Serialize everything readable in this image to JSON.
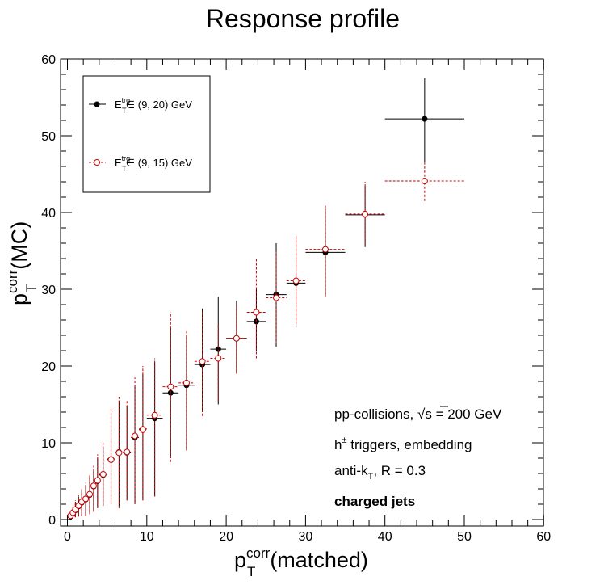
{
  "chart_data": {
    "type": "scatter",
    "title": "Response profile",
    "xlabel": {
      "main": "p",
      "sup": "corr",
      "sub": "T",
      "suffix": "(matched)"
    },
    "ylabel": {
      "main": "p",
      "sup": "corr",
      "sub": "T",
      "suffix": "(MC)"
    },
    "xlim": [
      0,
      60
    ],
    "ylim": [
      0,
      60
    ],
    "xticks": [
      "0",
      "10",
      "20",
      "30",
      "40",
      "50",
      "60"
    ],
    "yticks": [
      "0",
      "10",
      "20",
      "30",
      "40",
      "50",
      "60"
    ],
    "grid": false,
    "legend_position": "top-left",
    "series": [
      {
        "name": {
          "main": "E",
          "sup": "trg",
          "sub": "T",
          "suffix": " ∈ (9, 20) GeV"
        },
        "color": "#000000",
        "marker": "filled-circle",
        "line": "solid",
        "points": [
          {
            "x": 0.4,
            "y": 0.4,
            "xerr": 0.1,
            "ylo": 0.1,
            "yhi": 0.9
          },
          {
            "x": 0.7,
            "y": 0.8,
            "xerr": 0.15,
            "ylo": 0.2,
            "yhi": 1.6
          },
          {
            "x": 1.0,
            "y": 1.2,
            "xerr": 0.15,
            "ylo": 0.3,
            "yhi": 2.3
          },
          {
            "x": 1.4,
            "y": 1.7,
            "xerr": 0.2,
            "ylo": 0.4,
            "yhi": 3.0
          },
          {
            "x": 1.8,
            "y": 2.2,
            "xerr": 0.2,
            "ylo": 0.5,
            "yhi": 3.8
          },
          {
            "x": 2.3,
            "y": 2.6,
            "xerr": 0.25,
            "ylo": 0.5,
            "yhi": 4.5
          },
          {
            "x": 2.8,
            "y": 3.2,
            "xerr": 0.25,
            "ylo": 0.7,
            "yhi": 5.5
          },
          {
            "x": 3.3,
            "y": 4.3,
            "xerr": 0.25,
            "ylo": 1.0,
            "yhi": 6.5
          },
          {
            "x": 3.8,
            "y": 5.0,
            "xerr": 0.25,
            "ylo": 1.5,
            "yhi": 8.0
          },
          {
            "x": 4.5,
            "y": 5.8,
            "xerr": 0.5,
            "ylo": 1.8,
            "yhi": 9.5
          },
          {
            "x": 5.5,
            "y": 7.9,
            "xerr": 0.5,
            "ylo": 2.0,
            "yhi": 14.0
          },
          {
            "x": 6.5,
            "y": 8.8,
            "xerr": 0.5,
            "ylo": 1.5,
            "yhi": 15.5
          },
          {
            "x": 7.5,
            "y": 8.7,
            "xerr": 0.5,
            "ylo": 2.5,
            "yhi": 14.8
          },
          {
            "x": 8.5,
            "y": 10.7,
            "xerr": 0.5,
            "ylo": 2.0,
            "yhi": 17.5
          },
          {
            "x": 9.5,
            "y": 11.8,
            "xerr": 0.5,
            "ylo": 2.5,
            "yhi": 19.0
          },
          {
            "x": 11.0,
            "y": 13.2,
            "xerr": 1.0,
            "ylo": 3.0,
            "yhi": 20.5
          },
          {
            "x": 13.0,
            "y": 16.5,
            "xerr": 1.0,
            "ylo": 8.0,
            "yhi": 25.0
          },
          {
            "x": 15.0,
            "y": 17.5,
            "xerr": 1.0,
            "ylo": 9.0,
            "yhi": 24.0
          },
          {
            "x": 17.0,
            "y": 20.2,
            "xerr": 1.0,
            "ylo": 14.0,
            "yhi": 27.5
          },
          {
            "x": 19.0,
            "y": 22.2,
            "xerr": 1.0,
            "ylo": 15.0,
            "yhi": 29.0
          },
          {
            "x": 21.3,
            "y": 23.6,
            "xerr": 1.3,
            "ylo": 19.0,
            "yhi": 28.5
          },
          {
            "x": 23.8,
            "y": 25.8,
            "xerr": 1.2,
            "ylo": 22.0,
            "yhi": 30.0
          },
          {
            "x": 26.3,
            "y": 29.3,
            "xerr": 1.3,
            "ylo": 22.5,
            "yhi": 36.0
          },
          {
            "x": 28.8,
            "y": 30.8,
            "xerr": 1.2,
            "ylo": 25.0,
            "yhi": 37.0
          },
          {
            "x": 32.5,
            "y": 34.8,
            "xerr": 2.5,
            "ylo": 29.0,
            "yhi": 40.5
          },
          {
            "x": 37.5,
            "y": 39.7,
            "xerr": 2.5,
            "ylo": 35.5,
            "yhi": 43.5
          },
          {
            "x": 45.0,
            "y": 52.2,
            "xerr": 5.0,
            "ylo": 46.5,
            "yhi": 57.5
          }
        ]
      },
      {
        "name": {
          "main": "E",
          "sup": "trg",
          "sub": "T",
          "suffix": " ∈ (9, 15) GeV"
        },
        "color": "#cc0000",
        "marker": "open-circle",
        "line": "dashed",
        "points": [
          {
            "x": 0.4,
            "y": 0.5,
            "xerr": 0.1,
            "ylo": 0.1,
            "yhi": 1.0
          },
          {
            "x": 0.7,
            "y": 0.9,
            "xerr": 0.15,
            "ylo": 0.2,
            "yhi": 1.7
          },
          {
            "x": 1.0,
            "y": 1.3,
            "xerr": 0.15,
            "ylo": 0.3,
            "yhi": 2.5
          },
          {
            "x": 1.4,
            "y": 1.8,
            "xerr": 0.2,
            "ylo": 0.4,
            "yhi": 3.2
          },
          {
            "x": 1.8,
            "y": 2.3,
            "xerr": 0.2,
            "ylo": 0.5,
            "yhi": 4.0
          },
          {
            "x": 2.3,
            "y": 2.7,
            "xerr": 0.25,
            "ylo": 0.5,
            "yhi": 4.8
          },
          {
            "x": 2.8,
            "y": 3.3,
            "xerr": 0.25,
            "ylo": 0.7,
            "yhi": 5.8
          },
          {
            "x": 3.3,
            "y": 4.4,
            "xerr": 0.25,
            "ylo": 1.0,
            "yhi": 7.0
          },
          {
            "x": 3.8,
            "y": 5.1,
            "xerr": 0.25,
            "ylo": 1.5,
            "yhi": 8.5
          },
          {
            "x": 4.5,
            "y": 5.9,
            "xerr": 0.5,
            "ylo": 1.8,
            "yhi": 10.0
          },
          {
            "x": 5.5,
            "y": 7.8,
            "xerr": 0.5,
            "ylo": 2.0,
            "yhi": 14.5
          },
          {
            "x": 6.5,
            "y": 8.7,
            "xerr": 0.5,
            "ylo": 1.5,
            "yhi": 16.0
          },
          {
            "x": 7.5,
            "y": 8.8,
            "xerr": 0.5,
            "ylo": 2.5,
            "yhi": 15.5
          },
          {
            "x": 8.5,
            "y": 10.9,
            "xerr": 0.5,
            "ylo": 2.0,
            "yhi": 18.5
          },
          {
            "x": 9.5,
            "y": 11.7,
            "xerr": 0.5,
            "ylo": 2.5,
            "yhi": 20.0
          },
          {
            "x": 11.0,
            "y": 13.6,
            "xerr": 1.0,
            "ylo": 3.0,
            "yhi": 21.0
          },
          {
            "x": 13.0,
            "y": 17.3,
            "xerr": 1.0,
            "ylo": 7.5,
            "yhi": 27.0
          },
          {
            "x": 15.0,
            "y": 17.8,
            "xerr": 1.0,
            "ylo": 9.0,
            "yhi": 24.5
          },
          {
            "x": 17.0,
            "y": 20.6,
            "xerr": 1.0,
            "ylo": 13.5,
            "yhi": 27.0
          },
          {
            "x": 19.0,
            "y": 21.0,
            "xerr": 1.0,
            "ylo": 15.5,
            "yhi": 25.5
          },
          {
            "x": 21.3,
            "y": 23.6,
            "xerr": 1.3,
            "ylo": 19.0,
            "yhi": 28.0
          },
          {
            "x": 23.8,
            "y": 27.0,
            "xerr": 1.2,
            "ylo": 21.0,
            "yhi": 34.0
          },
          {
            "x": 26.3,
            "y": 28.9,
            "xerr": 1.3,
            "ylo": 23.0,
            "yhi": 35.0
          },
          {
            "x": 28.8,
            "y": 31.1,
            "xerr": 1.2,
            "ylo": 25.5,
            "yhi": 37.0
          },
          {
            "x": 32.5,
            "y": 35.2,
            "xerr": 2.5,
            "ylo": 29.0,
            "yhi": 41.0
          },
          {
            "x": 37.5,
            "y": 39.8,
            "xerr": 2.5,
            "ylo": 36.0,
            "yhi": 44.0
          },
          {
            "x": 45.0,
            "y": 44.1,
            "xerr": 5.0,
            "ylo": 41.5,
            "yhi": 46.5
          }
        ]
      }
    ],
    "annotations": [
      {
        "kind": "sqrt",
        "pre": "pp-collisions, ",
        "sqrt": "s",
        "post": " = 200 GeV"
      },
      {
        "kind": "sup",
        "main": "h",
        "sup": "±",
        "post": " triggers, embedding"
      },
      {
        "kind": "sub",
        "main": "anti-k",
        "sub": "T",
        "post": ", R = 0.3"
      },
      {
        "kind": "bold",
        "text": "charged jets"
      }
    ]
  }
}
